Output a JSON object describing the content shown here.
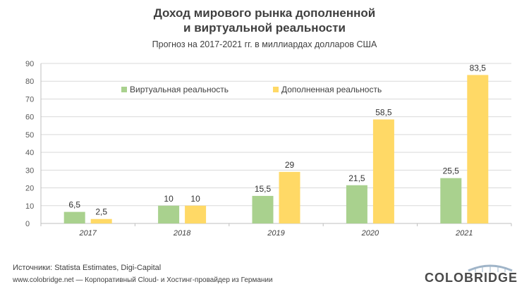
{
  "chart_data": {
    "type": "bar",
    "title_line1": "Доход мирового рынка дополненной",
    "title_line2": "и виртуальной реальности",
    "subtitle": "Прогноз  на 2017-2021 гг. в миллиардах  долларов США",
    "categories": [
      "2017",
      "2018",
      "2019",
      "2020",
      "2021"
    ],
    "series": [
      {
        "name": "Виртуальная реальность",
        "values": [
          6.5,
          10,
          15.5,
          21.5,
          25.5
        ],
        "labels": [
          "6,5",
          "10",
          "15,5",
          "21,5",
          "25,5"
        ]
      },
      {
        "name": "Дополненная реальность",
        "values": [
          2.5,
          10,
          29,
          58.5,
          83.5
        ],
        "labels": [
          "2,5",
          "10",
          "29",
          "58,5",
          "83,5"
        ]
      }
    ],
    "yticks": [
      "0",
      "10",
      "20",
      "30",
      "40",
      "50",
      "60",
      "70",
      "80",
      "90"
    ],
    "ylim": [
      0,
      90
    ],
    "legend_position": "top-left",
    "colors": {
      "virtual": "#a9d18e",
      "augmented": "#ffd966",
      "grid": "#d9d9d9",
      "axis": "#bfbfbf"
    }
  },
  "footer": {
    "sources": "Источники:  Statista  Estimates,  Digi-Capital",
    "site": "www.colobridge.net — Корпоративный Cloud- и Хостинг-провайдер из Германии"
  },
  "logo": {
    "text": "COLOBRIDGE",
    "color": "#4a4a4a",
    "arc_color": "#9fb4c8"
  }
}
